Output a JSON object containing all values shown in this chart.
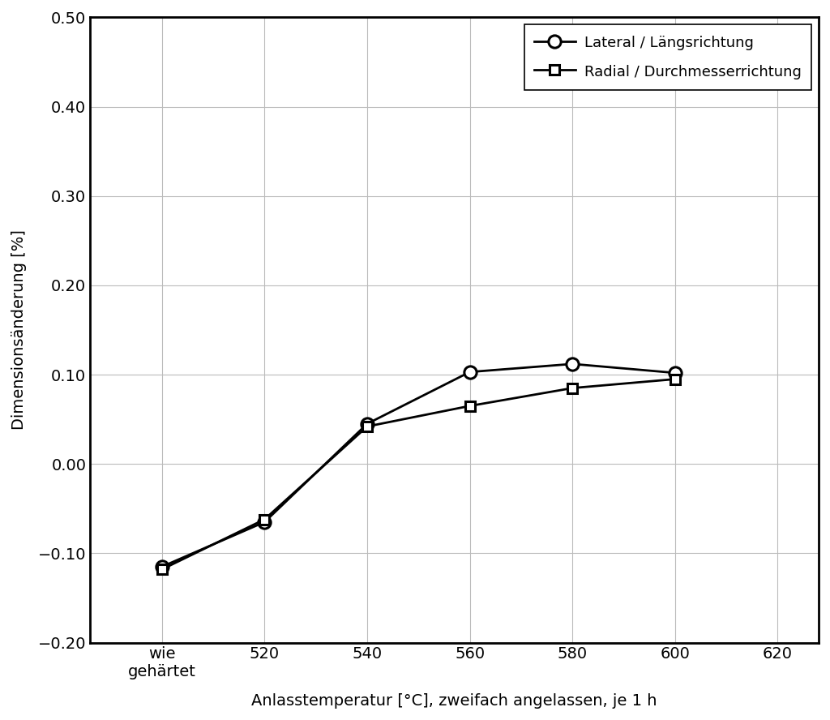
{
  "xlabel": "Anlasstemperatur [°C], zweifach angelassen, je 1 h",
  "ylabel": "Dimensionsänderung [%]",
  "x_all": [
    500,
    520,
    540,
    560,
    580,
    600
  ],
  "lateral_y": [
    -0.115,
    -0.065,
    0.045,
    0.103,
    0.112,
    0.102
  ],
  "radial_y": [
    -0.118,
    -0.062,
    0.042,
    0.065,
    0.085,
    0.095
  ],
  "xlim": [
    486,
    628
  ],
  "ylim": [
    -0.2,
    0.5
  ],
  "yticks": [
    -0.2,
    -0.1,
    0.0,
    0.1,
    0.2,
    0.3,
    0.4,
    0.5
  ],
  "xticks_all": [
    500,
    520,
    540,
    560,
    580,
    600,
    620
  ],
  "line_color": "#000000",
  "line_width": 2.0,
  "marker_size_circle": 11,
  "marker_size_square": 9,
  "legend_lateral": "Lateral / Längsrichtung",
  "legend_radial": "Radial / Durchmesserrichtung",
  "grid_color": "#bbbbbb",
  "background_color": "#ffffff",
  "font_size": 14,
  "legend_font_size": 13
}
